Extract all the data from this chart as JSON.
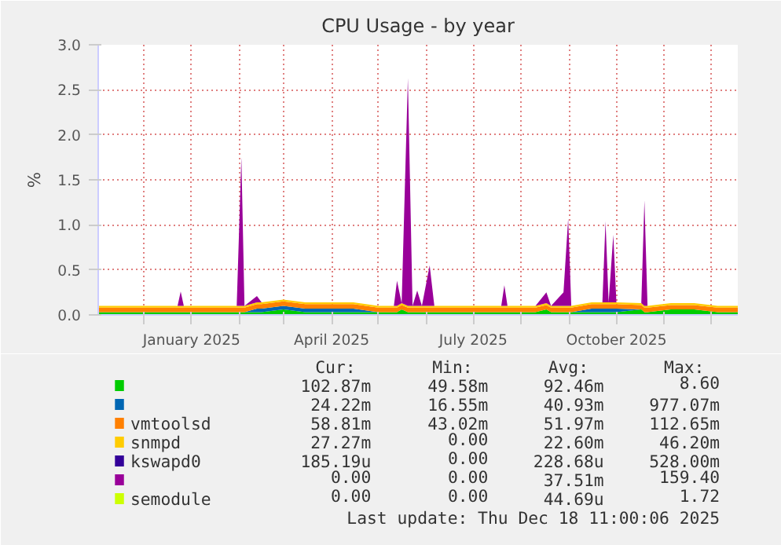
{
  "chart_data": {
    "type": "area",
    "stacked": true,
    "title": "CPU Usage - by year",
    "ylabel": "%",
    "x": [
      "2024-11-02",
      "2024-11-16",
      "2024-11-30",
      "2024-12-14",
      "2024-12-23",
      "2024-12-25",
      "2024-12-27",
      "2025-01-12",
      "2025-01-30",
      "2025-02-02",
      "2025-02-04",
      "2025-02-12",
      "2025-02-15",
      "2025-03-01",
      "2025-03-15",
      "2025-04-01",
      "2025-04-15",
      "2025-05-01",
      "2025-05-11",
      "2025-05-13",
      "2025-05-16",
      "2025-05-20",
      "2025-05-23",
      "2025-05-26",
      "2025-05-29",
      "2025-06-03",
      "2025-06-06",
      "2025-06-20",
      "2025-07-05",
      "2025-07-19",
      "2025-07-21",
      "2025-07-23",
      "2025-08-10",
      "2025-08-17",
      "2025-08-20",
      "2025-08-28",
      "2025-08-31",
      "2025-09-02",
      "2025-09-15",
      "2025-09-22",
      "2025-09-24",
      "2025-09-26",
      "2025-09-29",
      "2025-10-01",
      "2025-10-17",
      "2025-10-19",
      "2025-10-21",
      "2025-11-05",
      "2025-11-20",
      "2025-12-05",
      "2025-12-18"
    ],
    "series": [
      {
        "color": "#00cc00",
        "values": [
          0.03,
          0.03,
          0.03,
          0.03,
          0.03,
          0.03,
          0.03,
          0.03,
          0.03,
          0.03,
          0.03,
          0.03,
          0.03,
          0.06,
          0.03,
          0.03,
          0.03,
          0.03,
          0.03,
          0.03,
          0.06,
          0.03,
          0.03,
          0.03,
          0.03,
          0.03,
          0.03,
          0.03,
          0.03,
          0.03,
          0.03,
          0.03,
          0.03,
          0.06,
          0.03,
          0.03,
          0.03,
          0.03,
          0.03,
          0.03,
          0.03,
          0.03,
          0.03,
          0.03,
          0.06,
          0.03,
          0.03,
          0.06,
          0.06,
          0.03,
          0.03
        ]
      },
      {
        "color": "#0066b3",
        "values": [
          0,
          0,
          0,
          0,
          0,
          0,
          0,
          0,
          0,
          0,
          0,
          0.04,
          0.04,
          0.04,
          0.04,
          0.04,
          0.04,
          0,
          0,
          0,
          0,
          0,
          0,
          0,
          0,
          0,
          0,
          0,
          0,
          0,
          0,
          0,
          0,
          0,
          0,
          0,
          0,
          0,
          0.04,
          0.04,
          0.04,
          0.04,
          0.04,
          0.04,
          0,
          0,
          0,
          0,
          0,
          0,
          0
        ]
      },
      {
        "name": "vmtoolsd",
        "color": "#ff8000",
        "values": [
          0.05,
          0.05,
          0.05,
          0.05,
          0.05,
          0.05,
          0.05,
          0.05,
          0.05,
          0.05,
          0.05,
          0.05,
          0.05,
          0.05,
          0.05,
          0.05,
          0.05,
          0.05,
          0.05,
          0.05,
          0.05,
          0.05,
          0.05,
          0.05,
          0.05,
          0.05,
          0.05,
          0.05,
          0.05,
          0.05,
          0.05,
          0.05,
          0.05,
          0.05,
          0.05,
          0.05,
          0.05,
          0.05,
          0.05,
          0.05,
          0.05,
          0.05,
          0.05,
          0.05,
          0.05,
          0.05,
          0.05,
          0.05,
          0.05,
          0.05,
          0.05
        ]
      },
      {
        "name": "snmpd",
        "color": "#ffcc00",
        "values": [
          0.02,
          0.02,
          0.02,
          0.02,
          0.02,
          0.02,
          0.02,
          0.02,
          0.02,
          0.02,
          0.02,
          0.02,
          0.02,
          0.02,
          0.02,
          0.02,
          0.02,
          0.02,
          0.02,
          0.02,
          0.02,
          0.02,
          0.02,
          0.02,
          0.02,
          0.02,
          0.02,
          0.02,
          0.02,
          0.02,
          0.02,
          0.02,
          0.02,
          0.02,
          0.02,
          0.02,
          0.02,
          0.02,
          0.02,
          0.02,
          0.02,
          0.02,
          0.02,
          0.02,
          0.02,
          0.02,
          0.02,
          0.02,
          0.02,
          0.02,
          0.02
        ]
      },
      {
        "name": "kswapd0",
        "color": "#330099",
        "values": [
          null,
          null,
          null,
          null,
          null,
          null,
          null,
          null,
          null,
          null,
          null,
          null,
          null,
          null,
          null,
          null,
          null,
          null,
          null,
          null,
          null,
          null,
          null,
          null,
          null,
          null,
          null,
          null,
          null,
          null,
          null,
          null,
          null,
          null,
          null,
          null,
          null,
          null,
          null,
          null,
          null,
          null,
          null,
          null,
          null,
          null,
          null,
          null,
          null,
          null,
          null
        ]
      },
      {
        "color": "#990099",
        "values": [
          0,
          0,
          0,
          0,
          0,
          0.16,
          0,
          0,
          0,
          1.65,
          0,
          0.07,
          0,
          0,
          0,
          0,
          0,
          0,
          0,
          0.28,
          0,
          2.53,
          0,
          0.17,
          0,
          0.45,
          0,
          0,
          0,
          0,
          0.23,
          0,
          0,
          0.12,
          0,
          0.15,
          0.97,
          0,
          0,
          0,
          0.9,
          0,
          0.75,
          0,
          0,
          1.17,
          0,
          0,
          0,
          0,
          0
        ]
      },
      {
        "name": "semodule",
        "color": "#ccff00",
        "values": [
          null,
          null,
          null,
          null,
          null,
          null,
          null,
          null,
          null,
          null,
          null,
          null,
          null,
          null,
          null,
          null,
          null,
          null,
          null,
          null,
          null,
          null,
          null,
          null,
          null,
          null,
          null,
          null,
          null,
          null,
          null,
          null,
          null,
          null,
          null,
          null,
          null,
          null,
          null,
          null,
          null,
          null,
          null,
          null,
          null,
          null,
          null,
          null,
          null,
          null,
          null
        ]
      }
    ],
    "xlim": [
      "2024-11-02",
      "2025-12-18"
    ],
    "xticks": [
      {
        "value": "2024-12-01",
        "label": null
      },
      {
        "value": "2025-01-01",
        "label": "January 2025"
      },
      {
        "value": "2025-02-01",
        "label": null
      },
      {
        "value": "2025-03-01",
        "label": null
      },
      {
        "value": "2025-04-01",
        "label": "April 2025"
      },
      {
        "value": "2025-05-01",
        "label": null
      },
      {
        "value": "2025-06-01",
        "label": null
      },
      {
        "value": "2025-07-01",
        "label": "July 2025"
      },
      {
        "value": "2025-08-01",
        "label": null
      },
      {
        "value": "2025-09-01",
        "label": null
      },
      {
        "value": "2025-10-01",
        "label": "October 2025"
      },
      {
        "value": "2025-11-01",
        "label": null
      },
      {
        "value": "2025-12-01",
        "label": null
      }
    ],
    "ylim": [
      0,
      3
    ],
    "yticks": [
      {
        "value": 0,
        "label": "0.0"
      },
      {
        "value": 0.5,
        "label": "0.5"
      },
      {
        "value": 1,
        "label": "1.0"
      },
      {
        "value": 1.5,
        "label": "1.5"
      },
      {
        "value": 2,
        "label": "2.0"
      },
      {
        "value": 2.5,
        "label": "2.5"
      },
      {
        "value": 3,
        "label": "3.0"
      }
    ],
    "grid": true,
    "legend": "bottom",
    "annotations": [
      "Cur:",
      "Min:",
      "Avg:",
      "Max:",
      "102.87m",
      "49.58m",
      "92.46m",
      "8.60",
      "24.22m",
      "16.55m",
      "40.93m",
      "977.07m",
      "58.81m",
      "43.02m",
      "51.97m",
      "112.65m",
      "27.27m",
      "0.00",
      "22.60m",
      "46.20m",
      "185.19u",
      "0.00",
      "228.68u",
      "528.00m",
      "0.00",
      "0.00",
      "37.51m",
      "159.40",
      "0.00",
      "0.00",
      "44.69u",
      "1.72",
      "Last update: Thu Dec 18 11:00:06 2025"
    ]
  }
}
